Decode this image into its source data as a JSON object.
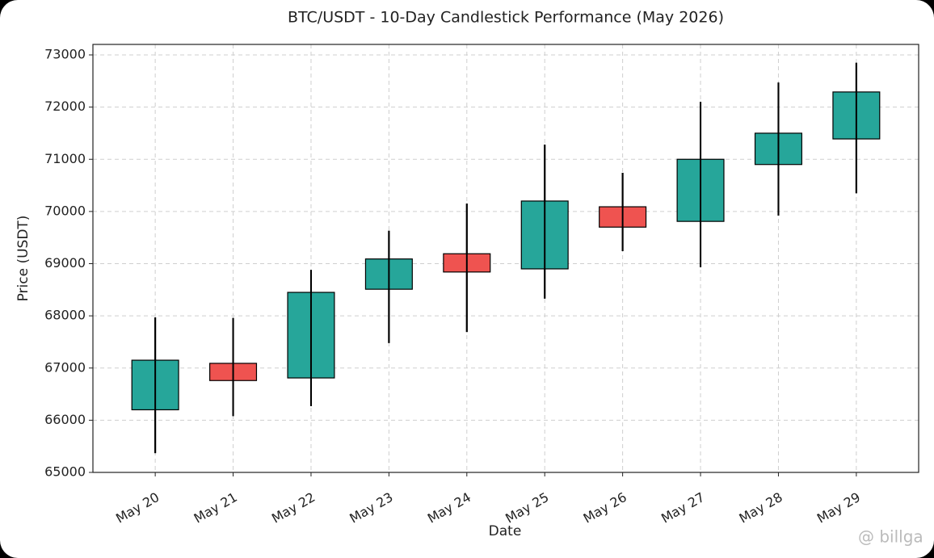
{
  "chart_data": {
    "type": "candlestick",
    "title": "BTC/USDT - 10-Day Candlestick Performance (May 2026)",
    "xlabel": "Date",
    "ylabel": "Price (USDT)",
    "categories": [
      "May 20",
      "May 21",
      "May 22",
      "May 23",
      "May 24",
      "May 25",
      "May 26",
      "May 27",
      "May 28",
      "May 29"
    ],
    "open": [
      66200,
      67090,
      66810,
      68510,
      69190,
      68900,
      70090,
      69810,
      70900,
      71390
    ],
    "high": [
      67970,
      67960,
      68880,
      69630,
      70150,
      71280,
      70740,
      72100,
      72470,
      72850
    ],
    "low": [
      65370,
      66080,
      66270,
      67480,
      67690,
      68330,
      69240,
      68930,
      69920,
      70350
    ],
    "close": [
      67150,
      66760,
      68450,
      69090,
      68840,
      70200,
      69700,
      71000,
      71500,
      72290
    ],
    "up_color": "#26a69a",
    "down_color": "#ef5350",
    "ylim": [
      65000,
      73000
    ],
    "yticks": [
      65000,
      66000,
      67000,
      68000,
      69000,
      70000,
      71000,
      72000,
      73000
    ],
    "grid": true,
    "watermark": "@ billga"
  }
}
